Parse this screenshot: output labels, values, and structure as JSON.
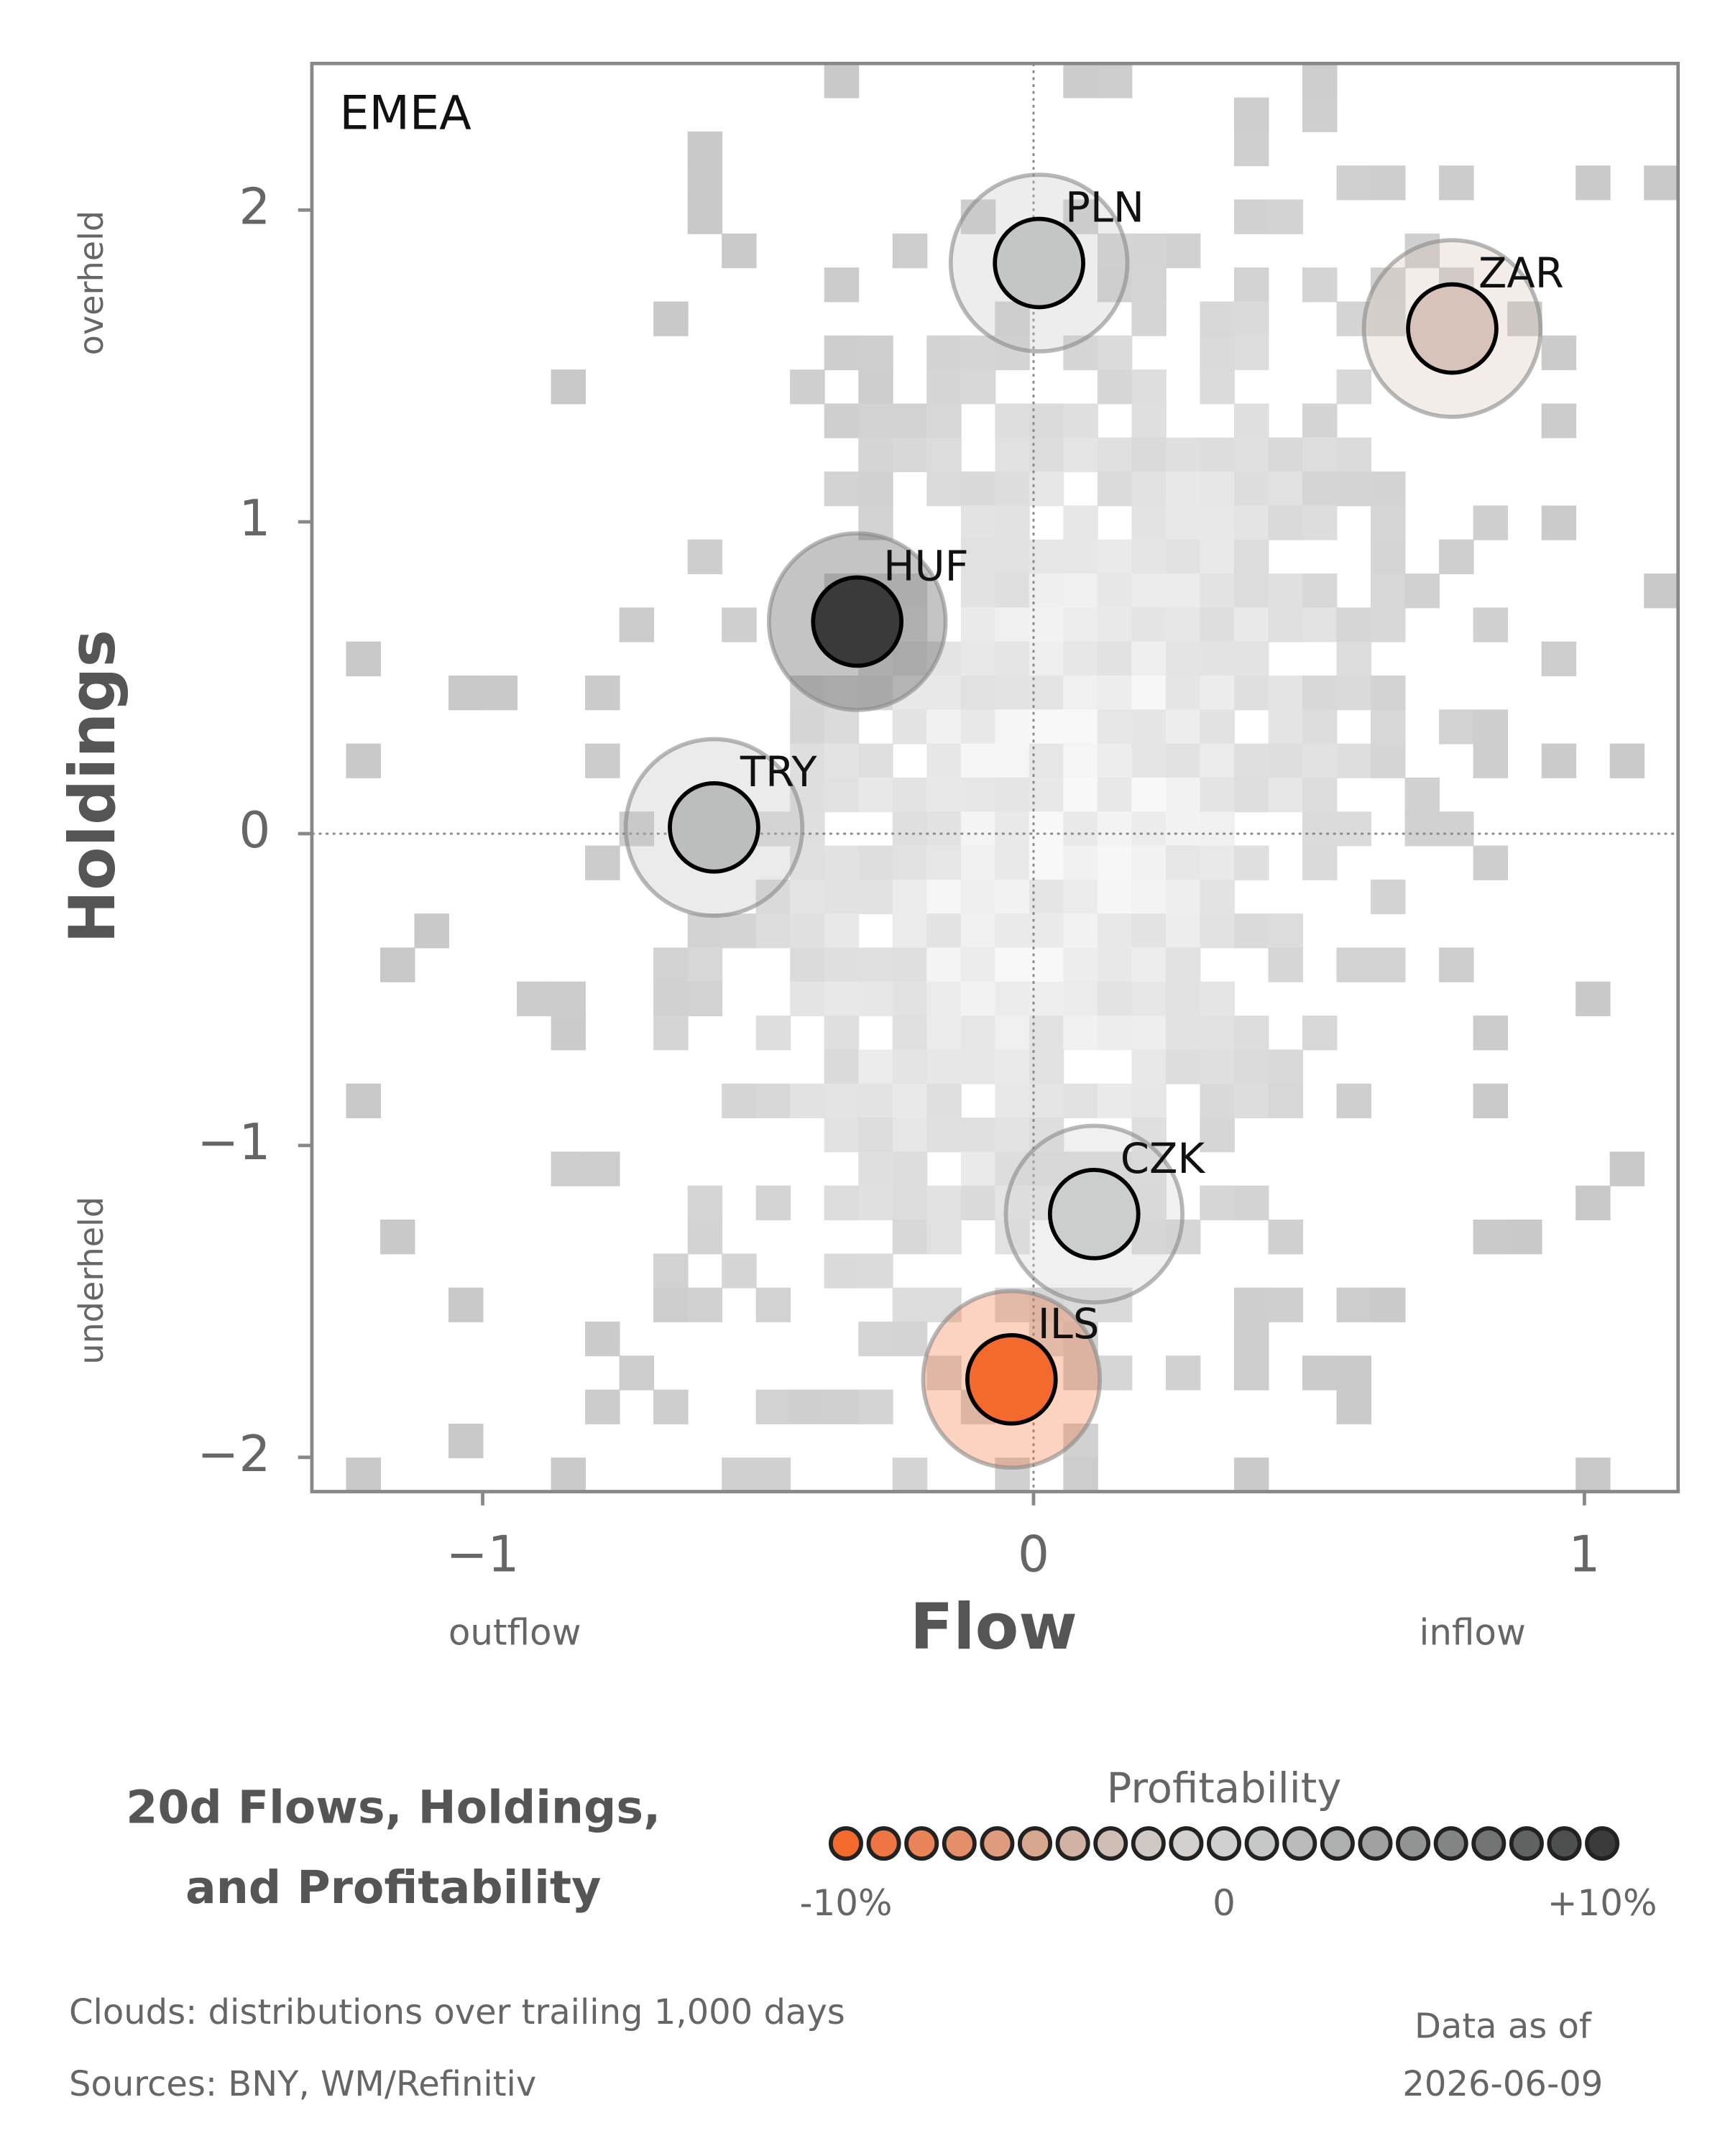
{
  "chart_data": {
    "type": "scatter",
    "annotation": "EMEA",
    "x_label": "Flow",
    "y_label": "Holdings",
    "x_low_label": "outflow",
    "x_high_label": "inflow",
    "y_high_label": "overheld",
    "y_low_label": "underheld",
    "point_labels": [
      "PLN",
      "ZAR",
      "HUF",
      "TRY",
      "CZK",
      "ILS"
    ],
    "x": [
      0.01,
      0.76,
      -0.32,
      -0.58,
      0.11,
      -0.04
    ],
    "values": [
      1.83,
      1.62,
      0.68,
      0.02,
      -1.22,
      -1.75
    ],
    "colors": [
      "#c4c5c5",
      "#d8c3bb",
      "#3a3a3b",
      "#bcbdbd",
      "#cccdcd",
      "#f46a2e"
    ],
    "xlim": [
      -1.31,
      1.17
    ],
    "ylim": [
      -2.11,
      2.47
    ],
    "xticks": [
      {
        "value": -1,
        "label": "−1"
      },
      0,
      1
    ],
    "yticks": [
      {
        "value": -2,
        "label": "−2"
      },
      {
        "value": -1,
        "label": "−1"
      },
      0,
      1,
      2
    ],
    "title_lines": [
      "20d Flows, Holdings,",
      "and Profitability"
    ],
    "colorbar": {
      "title": "Profitability",
      "range": [
        -10,
        10
      ],
      "ticks": [
        {
          "value": -10,
          "label": "-10%"
        },
        0,
        {
          "value": 10,
          "label": "+10%"
        }
      ],
      "colors": [
        "#f26a2c",
        "#ee7644",
        "#ea8357",
        "#e48f6a",
        "#de9b7d",
        "#d8a78f",
        "#d2b2a3",
        "#cebeb5",
        "#cfc8c4",
        "#d3d0ce",
        "#d0d0d0",
        "#c6c7c7",
        "#bbbbbb",
        "#aeafaf",
        "#a1a1a1",
        "#929393",
        "#838484",
        "#727373",
        "#616262",
        "#4e4f4f",
        "#3b3b3c"
      ]
    },
    "footnotes": [
      "Clouds:  distributions over trailing 1,000 days",
      "Sources:  BNY, WM/Refinitiv"
    ],
    "asof_label": "Data as of",
    "asof_date": "2026-06-09"
  }
}
